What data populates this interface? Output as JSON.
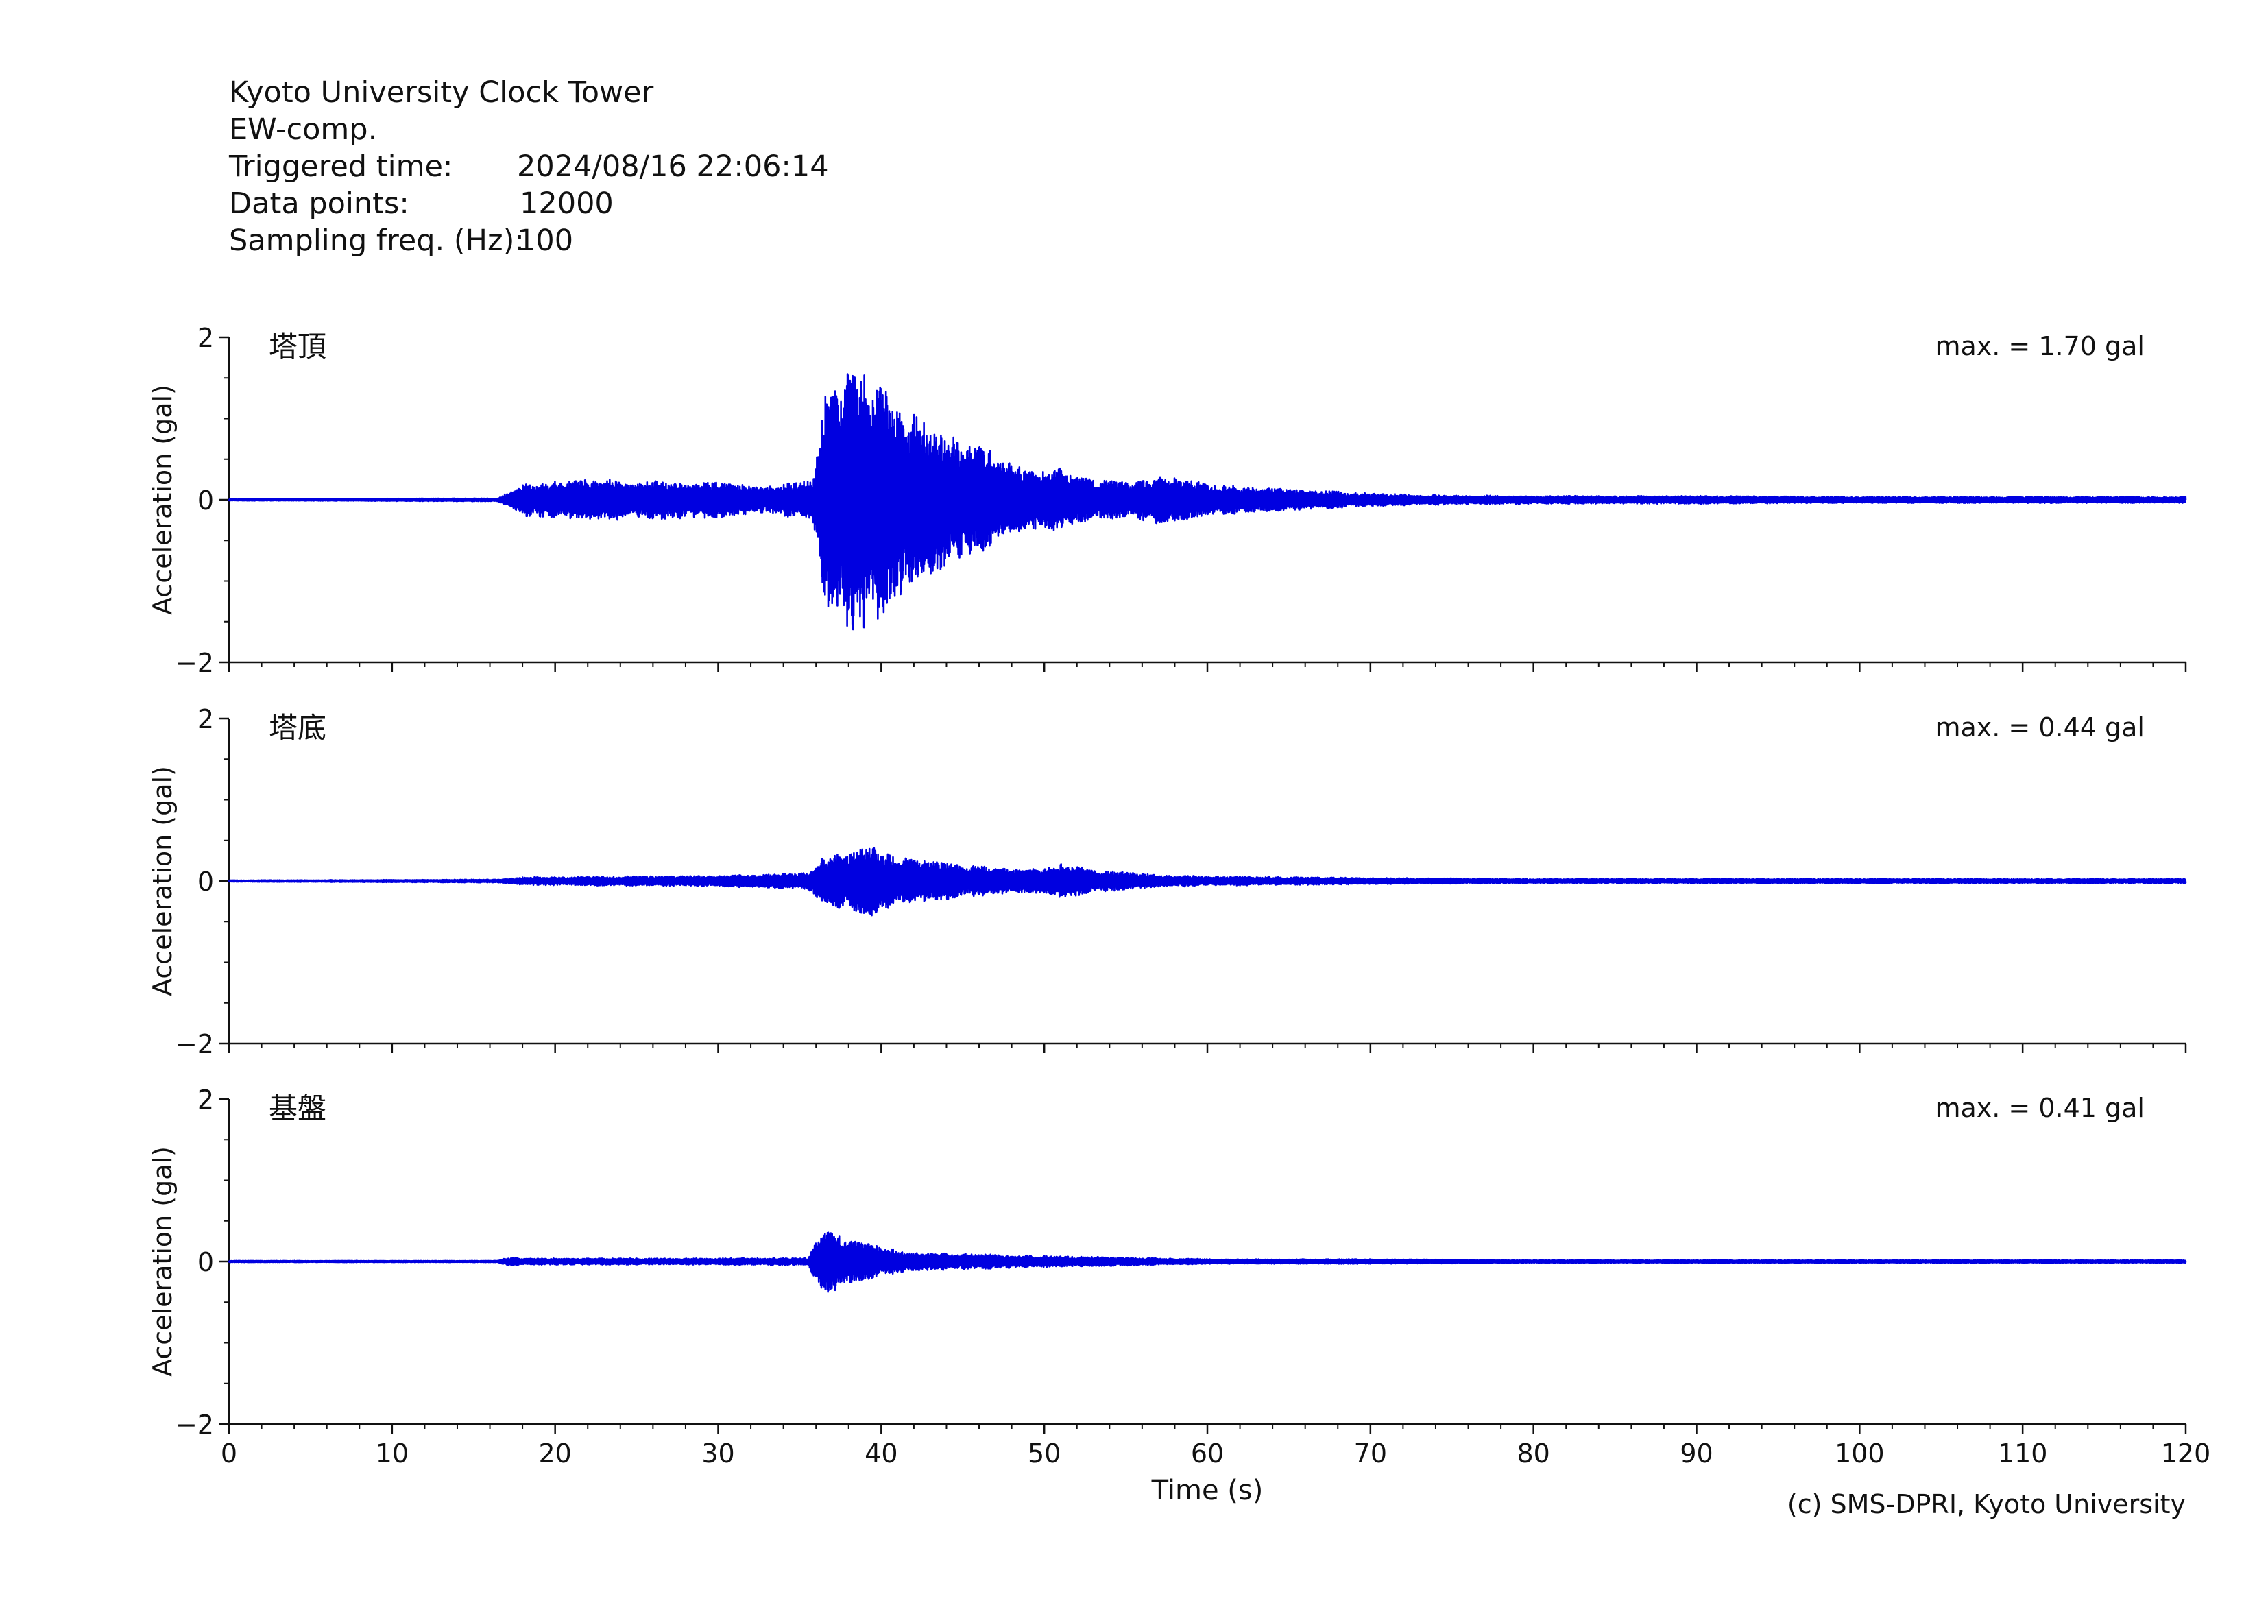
{
  "header": {
    "station": "Kyoto University Clock Tower",
    "component": "EW-comp.",
    "rows": [
      {
        "label": "Triggered time:",
        "value": "2024/08/16 22:06:14"
      },
      {
        "label": "Data points:",
        "value": "12000"
      },
      {
        "label": "Sampling freq. (Hz):",
        "value": "100"
      }
    ]
  },
  "credit": "(c) SMS-DPRI, Kyoto University",
  "chart_data": {
    "type": "line",
    "xlabel": "Time (s)",
    "xlim": [
      0,
      120
    ],
    "xticks": [
      0,
      10,
      20,
      30,
      40,
      50,
      60,
      70,
      80,
      90,
      100,
      110,
      120
    ],
    "ylabel": "Acceleration (gal)",
    "ylim": [
      -2,
      2
    ],
    "yticks": [
      2,
      0,
      -2
    ],
    "ytick_labels": [
      "2",
      "0",
      "−2"
    ],
    "grid": false,
    "line_color": "#0000e0",
    "series": [
      {
        "name": "塔頂",
        "max_label": "max. = 1.70 gal",
        "max": 1.7,
        "envelope": {
          "t": [
            0,
            16.5,
            18,
            22,
            26,
            30,
            33,
            35.8,
            36.5,
            37.5,
            38.6,
            39.5,
            41,
            43,
            45,
            47,
            49,
            51,
            53,
            55,
            57,
            60,
            63,
            66,
            70,
            75,
            80,
            90,
            100,
            110,
            120
          ],
          "a": [
            0.01,
            0.02,
            0.2,
            0.26,
            0.24,
            0.22,
            0.18,
            0.25,
            1.3,
            1.5,
            1.7,
            1.55,
            1.2,
            0.95,
            0.75,
            0.6,
            0.35,
            0.4,
            0.25,
            0.22,
            0.3,
            0.2,
            0.15,
            0.13,
            0.08,
            0.06,
            0.05,
            0.05,
            0.04,
            0.04,
            0.04
          ]
        }
      },
      {
        "name": "塔底",
        "max_label": "max. = 0.44 gal",
        "max": 0.44,
        "envelope": {
          "t": [
            0,
            16.5,
            18,
            25,
            30,
            35.5,
            36.5,
            38,
            39.5,
            41,
            43,
            45,
            47,
            49,
            51,
            53,
            57,
            60,
            65,
            70,
            80,
            90,
            100,
            110,
            120
          ],
          "a": [
            0.01,
            0.02,
            0.05,
            0.06,
            0.07,
            0.1,
            0.33,
            0.35,
            0.44,
            0.3,
            0.25,
            0.2,
            0.17,
            0.14,
            0.22,
            0.14,
            0.08,
            0.06,
            0.05,
            0.04,
            0.03,
            0.03,
            0.03,
            0.03,
            0.03
          ]
        }
      },
      {
        "name": "基盤",
        "max_label": "max. = 0.41 gal",
        "max": 0.41,
        "envelope": {
          "t": [
            0,
            16.5,
            17.2,
            18,
            25,
            30,
            35.5,
            36.5,
            37.5,
            38.5,
            40,
            42,
            45,
            48,
            52,
            56,
            60,
            70,
            80,
            90,
            100,
            110,
            120
          ],
          "a": [
            0.01,
            0.01,
            0.06,
            0.04,
            0.04,
            0.04,
            0.05,
            0.41,
            0.33,
            0.25,
            0.18,
            0.12,
            0.1,
            0.08,
            0.06,
            0.05,
            0.03,
            0.03,
            0.02,
            0.02,
            0.02,
            0.02,
            0.02
          ]
        }
      }
    ]
  }
}
